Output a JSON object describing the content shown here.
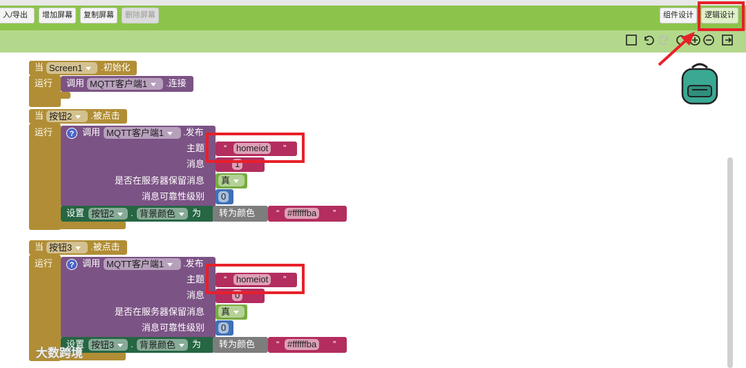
{
  "toolbar": {
    "left_buttons": [
      "入/导出",
      "增加屏幕",
      "复制屏幕",
      "删除屏幕"
    ],
    "right_buttons": [
      "组件设计",
      "逻辑设计"
    ]
  },
  "quotes": [
    "“",
    "”"
  ],
  "blocks": [
    {
      "when": "当",
      "component": "Screen1",
      "event": ".初始化",
      "do": "运行",
      "call": "调用",
      "client": "MQTT客户端1",
      "method": ".连接"
    },
    {
      "when": "当",
      "component": "按钮2",
      "event": ".被点击",
      "do": "运行",
      "help": "?",
      "call": "调用",
      "client": "MQTT客户端1",
      "method": ".发布",
      "params": [
        {
          "label": "主题",
          "value": "homeiot"
        },
        {
          "label": "消息",
          "value": "1"
        },
        {
          "label": "是否在服务器保留消息",
          "value": "真"
        },
        {
          "label": "消息可靠性级别",
          "value": "0"
        }
      ],
      "set": {
        "keyword": "设置",
        "component": "按钮2",
        "dot": ".",
        "property": "背景颜色",
        "to": "为",
        "convert": "转为颜色",
        "value": "#ffffffba"
      }
    },
    {
      "when": "当",
      "component": "按钮3",
      "event": ".被点击",
      "do": "运行",
      "help": "?",
      "call": "调用",
      "client": "MQTT客户端1",
      "method": ".发布",
      "params": [
        {
          "label": "主题",
          "value": "homeiot"
        },
        {
          "label": "消息",
          "value": "0"
        },
        {
          "label": "是否在服务器保留消息",
          "value": "真"
        },
        {
          "label": "消息可靠性级别",
          "value": "0"
        }
      ],
      "set": {
        "keyword": "设置",
        "component": "按钮3",
        "dot": ".",
        "property": "背景颜色",
        "to": "为",
        "convert": "转为颜色",
        "value": "#ffffffba"
      }
    }
  ],
  "watermark": "大数跨境"
}
